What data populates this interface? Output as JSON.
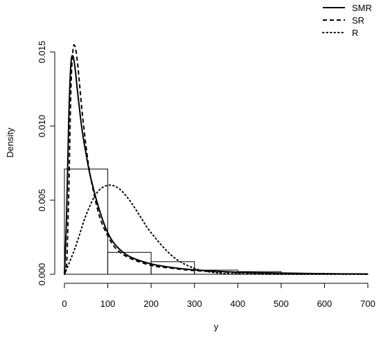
{
  "chart_data": {
    "type": "histogram with density curves",
    "xlabel": "y",
    "ylabel": "Density",
    "xlim": [
      0,
      700
    ],
    "ylim": [
      0,
      0.015
    ],
    "x_ticks": [
      0,
      100,
      200,
      300,
      400,
      500,
      600,
      700
    ],
    "x_tick_labels": [
      "0",
      "100",
      "200",
      "300",
      "400",
      "500",
      "600",
      "700"
    ],
    "y_ticks": [
      0,
      0.005,
      0.01,
      0.015
    ],
    "y_tick_labels": [
      "0.000",
      "0.005",
      "0.010",
      "0.015"
    ],
    "grid": false,
    "legend_position": "top-right",
    "histogram": {
      "bin_edges": [
        0,
        100,
        200,
        300,
        400,
        500,
        600,
        700
      ],
      "densities": [
        0.0071,
        0.00148,
        0.00085,
        0.00028,
        0.00018,
        7e-05,
        4e-05
      ]
    },
    "series": [
      {
        "name": "SMR",
        "line_style": "solid",
        "x": [
          0,
          5,
          10,
          15,
          20,
          25,
          30,
          40,
          50,
          60,
          80,
          100,
          120,
          150,
          200,
          250,
          300,
          400,
          500,
          600,
          700
        ],
        "y": [
          0,
          0.004,
          0.0105,
          0.0142,
          0.0147,
          0.0138,
          0.0124,
          0.0099,
          0.0081,
          0.0066,
          0.0044,
          0.0028,
          0.0019,
          0.0012,
          0.0007,
          0.00045,
          0.0003,
          0.00014,
          8e-05,
          4e-05,
          2e-05
        ]
      },
      {
        "name": "SR",
        "line_style": "dashed",
        "x": [
          0,
          5,
          10,
          15,
          20,
          25,
          30,
          35,
          40,
          50,
          60,
          80,
          100,
          120,
          150,
          200,
          250,
          300,
          400,
          500,
          600,
          700
        ],
        "y": [
          0,
          0.0007,
          0.0055,
          0.0125,
          0.0152,
          0.0153,
          0.0143,
          0.0128,
          0.0112,
          0.0086,
          0.0066,
          0.004,
          0.0026,
          0.0017,
          0.0011,
          0.0006,
          0.0004,
          0.00025,
          0.00012,
          6e-05,
          3e-05,
          1e-05
        ]
      },
      {
        "name": "R",
        "line_style": "dotted",
        "x": [
          0,
          25,
          50,
          75,
          100,
          125,
          150,
          175,
          200,
          250,
          300,
          350,
          400,
          500,
          600,
          700
        ],
        "y": [
          0,
          0.0018,
          0.004,
          0.0055,
          0.006,
          0.0058,
          0.005,
          0.0039,
          0.0028,
          0.0012,
          0.0004,
          0.0001,
          3e-05,
          0,
          0,
          0
        ]
      }
    ]
  }
}
